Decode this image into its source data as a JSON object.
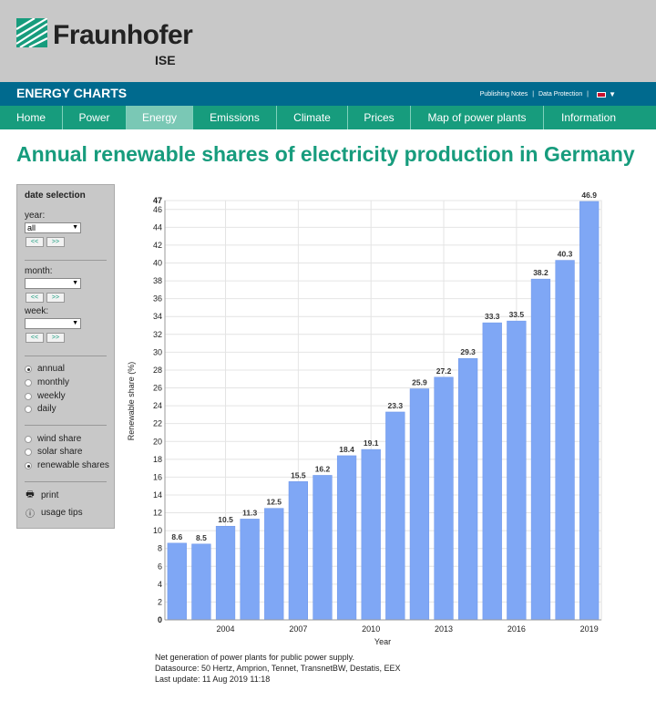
{
  "brand": {
    "name": "Fraunhofer",
    "sub": "ISE"
  },
  "site": {
    "title": "ENERGY CHARTS",
    "links": [
      "Publishing Notes",
      "Data Protection"
    ]
  },
  "nav": [
    {
      "label": "Home"
    },
    {
      "label": "Power"
    },
    {
      "label": "Energy",
      "active": true
    },
    {
      "label": "Emissions"
    },
    {
      "label": "Climate"
    },
    {
      "label": "Prices"
    },
    {
      "label": "Map of power plants"
    },
    {
      "label": "Information"
    }
  ],
  "page_title": "Annual renewable shares of electricity production in Germany",
  "sidebar": {
    "heading": "date selection",
    "year_label": "year:",
    "year_value": "all",
    "month_label": "month:",
    "month_value": "",
    "week_label": "week:",
    "week_value": "",
    "prev": "<<",
    "next": ">>",
    "period_options": [
      "annual",
      "monthly",
      "weekly",
      "daily"
    ],
    "period_selected": "annual",
    "share_options": [
      "wind share",
      "solar share",
      "renewable shares"
    ],
    "share_selected": "renewable shares",
    "print_label": "print",
    "tips_label": "usage tips"
  },
  "colors": {
    "bar": "#7fa7f5",
    "accent": "#179c7d",
    "bluebar": "#006a8e"
  },
  "chart_data": {
    "type": "bar",
    "title": "",
    "xlabel": "Year",
    "ylabel": "Renewable share (%)",
    "categories": [
      "2002",
      "2003",
      "2004",
      "2005",
      "2006",
      "2007",
      "2008",
      "2009",
      "2010",
      "2011",
      "2012",
      "2013",
      "2014",
      "2015",
      "2016",
      "2017",
      "2018",
      "2019"
    ],
    "x_tick_labels": [
      "2004",
      "2007",
      "2010",
      "2013",
      "2016",
      "2019"
    ],
    "values": [
      8.6,
      8.5,
      10.5,
      11.3,
      12.5,
      15.5,
      16.2,
      18.4,
      19.1,
      23.3,
      25.9,
      27.2,
      29.3,
      33.3,
      33.5,
      38.2,
      40.3,
      46.9
    ],
    "data_labels": [
      "8.6",
      "8.5",
      "10.5",
      "11.3",
      "12.5",
      "15.5",
      "16.2",
      "18.4",
      "19.1",
      "23.3",
      "25.9",
      "27.2",
      "29.3",
      "33.3",
      "33.5",
      "38.2",
      "40.3",
      "46.9"
    ],
    "ylim": [
      0,
      47
    ],
    "y_ticks": [
      "0",
      "2",
      "4",
      "6",
      "8",
      "10",
      "12",
      "14",
      "16",
      "18",
      "20",
      "22",
      "24",
      "26",
      "28",
      "30",
      "32",
      "34",
      "36",
      "38",
      "40",
      "42",
      "44",
      "46",
      "47"
    ],
    "grid": true
  },
  "footnotes": [
    "Net generation of power plants for public power supply.",
    "Datasource: 50 Hertz, Amprion, Tennet, TransnetBW, Destatis, EEX",
    "Last update: 11 Aug 2019 11:18"
  ]
}
